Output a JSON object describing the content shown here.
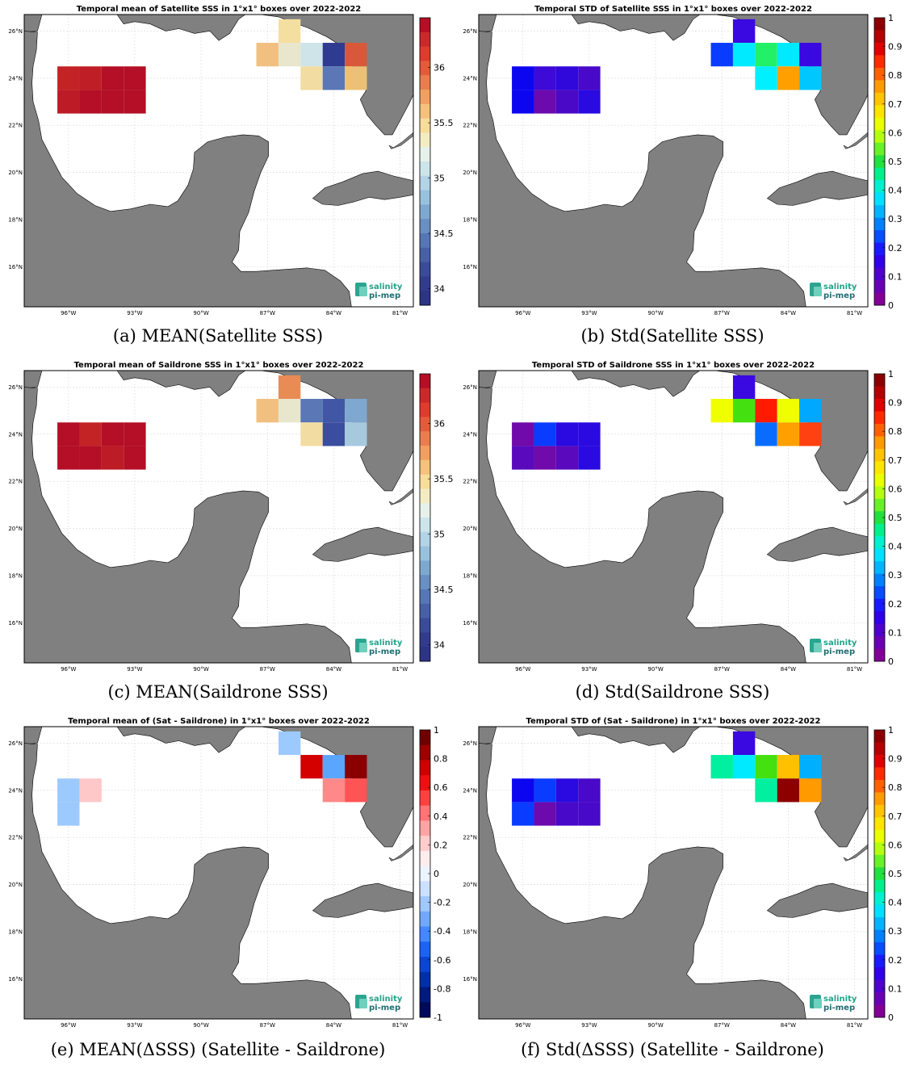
{
  "lon_ticks": [
    "96°W",
    "93°W",
    "90°W",
    "87°W",
    "84°W",
    "81°W"
  ],
  "lat_ticks": [
    "26°N",
    "24°N",
    "22°N",
    "20°N",
    "18°N",
    "16°N"
  ],
  "logo": {
    "line1": "salinity",
    "line2": "pi-mep"
  },
  "colors": {
    "land": "#808080",
    "ocean": "#ffffff",
    "grid": "#d9d9d9",
    "frame": "#000000"
  },
  "panels": [
    {
      "id": "a",
      "title": "Temporal mean of Satellite SSS in 1°x1° boxes over 2022-2022",
      "caption": "(a) MEAN(Satellite SSS)",
      "colorbar": {
        "type": "sss",
        "ticks": [
          "36",
          "35.5",
          "35",
          "34.5",
          "34"
        ]
      },
      "cells": [
        {
          "lon": -96.5,
          "lat": 23.5,
          "color": "#c42325"
        },
        {
          "lon": -95.5,
          "lat": 23.5,
          "color": "#c01e26"
        },
        {
          "lon": -94.5,
          "lat": 23.5,
          "color": "#b40f26"
        },
        {
          "lon": -93.5,
          "lat": 23.5,
          "color": "#b40f26"
        },
        {
          "lon": -96.5,
          "lat": 22.5,
          "color": "#bd1b26"
        },
        {
          "lon": -95.5,
          "lat": 22.5,
          "color": "#b40f26"
        },
        {
          "lon": -94.5,
          "lat": 22.5,
          "color": "#b40f26"
        },
        {
          "lon": -93.5,
          "lat": 22.5,
          "color": "#b40f26"
        },
        {
          "lon": -86.5,
          "lat": 25.5,
          "color": "#f5dfa0"
        },
        {
          "lon": -87.5,
          "lat": 24.5,
          "color": "#f1c080"
        },
        {
          "lon": -86.5,
          "lat": 24.5,
          "color": "#e8e6cc"
        },
        {
          "lon": -85.5,
          "lat": 24.5,
          "color": "#cfe4e8"
        },
        {
          "lon": -84.5,
          "lat": 24.5,
          "color": "#2e3b90"
        },
        {
          "lon": -83.5,
          "lat": 24.5,
          "color": "#d7593a"
        },
        {
          "lon": -85.5,
          "lat": 23.5,
          "color": "#f3dca2"
        },
        {
          "lon": -84.5,
          "lat": 23.5,
          "color": "#5b77b5"
        },
        {
          "lon": -83.5,
          "lat": 23.5,
          "color": "#ecc076"
        }
      ]
    },
    {
      "id": "b",
      "title": "Temporal STD of Satellite SSS in 1°x1° boxes over 2022-2022",
      "caption": "(b) Std(Satellite SSS)",
      "colorbar": {
        "type": "std",
        "ticks": [
          "1",
          "0.9",
          "0.8",
          "0.7",
          "0.6",
          "0.5",
          "0.4",
          "0.3",
          "0.2",
          "0.1",
          "0"
        ]
      },
      "cells": [
        {
          "lon": -96.5,
          "lat": 23.5,
          "color": "#0c06f0"
        },
        {
          "lon": -95.5,
          "lat": 23.5,
          "color": "#3d0ad8"
        },
        {
          "lon": -94.5,
          "lat": 23.5,
          "color": "#3008dc"
        },
        {
          "lon": -93.5,
          "lat": 23.5,
          "color": "#4809c8"
        },
        {
          "lon": -96.5,
          "lat": 22.5,
          "color": "#0c06f0"
        },
        {
          "lon": -95.5,
          "lat": 22.5,
          "color": "#6c0aae"
        },
        {
          "lon": -94.5,
          "lat": 22.5,
          "color": "#4a09c6"
        },
        {
          "lon": -93.5,
          "lat": 22.5,
          "color": "#2a0ae0"
        },
        {
          "lon": -86.5,
          "lat": 25.5,
          "color": "#3a08e0"
        },
        {
          "lon": -87.5,
          "lat": 24.5,
          "color": "#0a3cff"
        },
        {
          "lon": -86.5,
          "lat": 24.5,
          "color": "#00eaff"
        },
        {
          "lon": -85.5,
          "lat": 24.5,
          "color": "#22f066"
        },
        {
          "lon": -84.5,
          "lat": 24.5,
          "color": "#00eaff"
        },
        {
          "lon": -83.5,
          "lat": 24.5,
          "color": "#3a08e0"
        },
        {
          "lon": -85.5,
          "lat": 23.5,
          "color": "#00f0ff"
        },
        {
          "lon": -84.5,
          "lat": 23.5,
          "color": "#ffa000"
        },
        {
          "lon": -83.5,
          "lat": 23.5,
          "color": "#00c8ff"
        }
      ]
    },
    {
      "id": "c",
      "title": "Temporal mean of Saildrone SSS in 1°x1° boxes over 2022-2022",
      "caption": "(c) MEAN(Saildrone SSS)",
      "colorbar": {
        "type": "sss",
        "ticks": [
          "36",
          "35.5",
          "35",
          "34.5",
          "34"
        ]
      },
      "cells": [
        {
          "lon": -96.5,
          "lat": 23.5,
          "color": "#b40f26"
        },
        {
          "lon": -95.5,
          "lat": 23.5,
          "color": "#c42325"
        },
        {
          "lon": -94.5,
          "lat": 23.5,
          "color": "#b40f26"
        },
        {
          "lon": -93.5,
          "lat": 23.5,
          "color": "#b40f26"
        },
        {
          "lon": -96.5,
          "lat": 22.5,
          "color": "#b40f26"
        },
        {
          "lon": -95.5,
          "lat": 22.5,
          "color": "#b40f26"
        },
        {
          "lon": -94.5,
          "lat": 22.5,
          "color": "#bd1b26"
        },
        {
          "lon": -93.5,
          "lat": 22.5,
          "color": "#b40f26"
        },
        {
          "lon": -86.5,
          "lat": 25.5,
          "color": "#e98b55"
        },
        {
          "lon": -87.5,
          "lat": 24.5,
          "color": "#f1c080"
        },
        {
          "lon": -86.5,
          "lat": 24.5,
          "color": "#e8e6cc"
        },
        {
          "lon": -85.5,
          "lat": 24.5,
          "color": "#5b77b5"
        },
        {
          "lon": -84.5,
          "lat": 24.5,
          "color": "#4156a4"
        },
        {
          "lon": -83.5,
          "lat": 24.5,
          "color": "#7fa8d0"
        },
        {
          "lon": -85.5,
          "lat": 23.5,
          "color": "#f3dca2"
        },
        {
          "lon": -84.5,
          "lat": 23.5,
          "color": "#3a4d9e"
        },
        {
          "lon": -83.5,
          "lat": 23.5,
          "color": "#a6c9de"
        }
      ]
    },
    {
      "id": "d",
      "title": "Temporal STD of Saildrone SSS in 1°x1° boxes over 2022-2022",
      "caption": "(d) Std(Saildrone SSS)",
      "colorbar": {
        "type": "std",
        "ticks": [
          "1",
          "0.9",
          "0.8",
          "0.7",
          "0.6",
          "0.5",
          "0.4",
          "0.3",
          "0.2",
          "0.1",
          "0"
        ]
      },
      "cells": [
        {
          "lon": -96.5,
          "lat": 23.5,
          "color": "#700aaa"
        },
        {
          "lon": -95.5,
          "lat": 23.5,
          "color": "#0a3cff"
        },
        {
          "lon": -94.5,
          "lat": 23.5,
          "color": "#2a0ae0"
        },
        {
          "lon": -93.5,
          "lat": 23.5,
          "color": "#2a0ae0"
        },
        {
          "lon": -96.5,
          "lat": 22.5,
          "color": "#5a0abc"
        },
        {
          "lon": -95.5,
          "lat": 22.5,
          "color": "#700aaa"
        },
        {
          "lon": -94.5,
          "lat": 22.5,
          "color": "#5a0abc"
        },
        {
          "lon": -93.5,
          "lat": 22.5,
          "color": "#2a0ae0"
        },
        {
          "lon": -86.5,
          "lat": 25.5,
          "color": "#3a08e0"
        },
        {
          "lon": -87.5,
          "lat": 24.5,
          "color": "#f0ff00"
        },
        {
          "lon": -86.5,
          "lat": 24.5,
          "color": "#44e010"
        },
        {
          "lon": -85.5,
          "lat": 24.5,
          "color": "#ff1a00"
        },
        {
          "lon": -84.5,
          "lat": 24.5,
          "color": "#f0ff00"
        },
        {
          "lon": -83.5,
          "lat": 24.5,
          "color": "#00a8ff"
        },
        {
          "lon": -85.5,
          "lat": 23.5,
          "color": "#0a6cff"
        },
        {
          "lon": -84.5,
          "lat": 23.5,
          "color": "#ffa000"
        },
        {
          "lon": -83.5,
          "lat": 23.5,
          "color": "#ff4010"
        }
      ]
    },
    {
      "id": "e",
      "title": "Temporal mean of (Sat - Saildrone) in 1°x1° boxes over 2022-2022",
      "caption": "(e) MEAN(ΔSSS) (Satellite - Saildrone)",
      "colorbar": {
        "type": "diff",
        "ticks": [
          "1",
          "0.8",
          "0.6",
          "0.4",
          "0.2",
          "0",
          "-0.2",
          "-0.4",
          "-0.6",
          "-0.8",
          "-1"
        ]
      },
      "cells": [
        {
          "lon": -96.5,
          "lat": 23.5,
          "color": "#9ccaff"
        },
        {
          "lon": -95.5,
          "lat": 23.5,
          "color": "#ffc8c8"
        },
        {
          "lon": -96.5,
          "lat": 22.5,
          "color": "#9ccaff"
        },
        {
          "lon": -86.5,
          "lat": 25.5,
          "color": "#9ccaff"
        },
        {
          "lon": -85.5,
          "lat": 24.5,
          "color": "#d40000"
        },
        {
          "lon": -84.5,
          "lat": 24.5,
          "color": "#5aa6ff"
        },
        {
          "lon": -83.5,
          "lat": 24.5,
          "color": "#8a0000"
        },
        {
          "lon": -84.5,
          "lat": 23.5,
          "color": "#ff8888"
        },
        {
          "lon": -83.5,
          "lat": 23.5,
          "color": "#ff5454"
        }
      ]
    },
    {
      "id": "f",
      "title": "Temporal STD of (Sat - Saildrone) in 1°x1° boxes over 2022-2022",
      "caption": "(f) Std(ΔSSS) (Satellite - Saildrone)",
      "colorbar": {
        "type": "std",
        "ticks": [
          "1",
          "0.9",
          "0.8",
          "0.7",
          "0.6",
          "0.5",
          "0.4",
          "0.3",
          "0.2",
          "0.1",
          "0"
        ]
      },
      "cells": [
        {
          "lon": -96.5,
          "lat": 23.5,
          "color": "#0c06f0"
        },
        {
          "lon": -95.5,
          "lat": 23.5,
          "color": "#0a3cff"
        },
        {
          "lon": -94.5,
          "lat": 23.5,
          "color": "#2a0ae0"
        },
        {
          "lon": -93.5,
          "lat": 23.5,
          "color": "#4809c8"
        },
        {
          "lon": -96.5,
          "lat": 22.5,
          "color": "#0a3cff"
        },
        {
          "lon": -95.5,
          "lat": 22.5,
          "color": "#6c0aae"
        },
        {
          "lon": -94.5,
          "lat": 22.5,
          "color": "#4809c8"
        },
        {
          "lon": -93.5,
          "lat": 22.5,
          "color": "#4809c8"
        },
        {
          "lon": -86.5,
          "lat": 25.5,
          "color": "#3a08e0"
        },
        {
          "lon": -87.5,
          "lat": 24.5,
          "color": "#00f0a0"
        },
        {
          "lon": -86.5,
          "lat": 24.5,
          "color": "#00eaff"
        },
        {
          "lon": -85.5,
          "lat": 24.5,
          "color": "#44e010"
        },
        {
          "lon": -84.5,
          "lat": 24.5,
          "color": "#ffc000"
        },
        {
          "lon": -83.5,
          "lat": 24.5,
          "color": "#00b0ff"
        },
        {
          "lon": -85.5,
          "lat": 23.5,
          "color": "#00f0a0"
        },
        {
          "lon": -84.5,
          "lat": 23.5,
          "color": "#8c0000"
        },
        {
          "lon": -83.5,
          "lat": 23.5,
          "color": "#ff9a00"
        }
      ]
    }
  ]
}
